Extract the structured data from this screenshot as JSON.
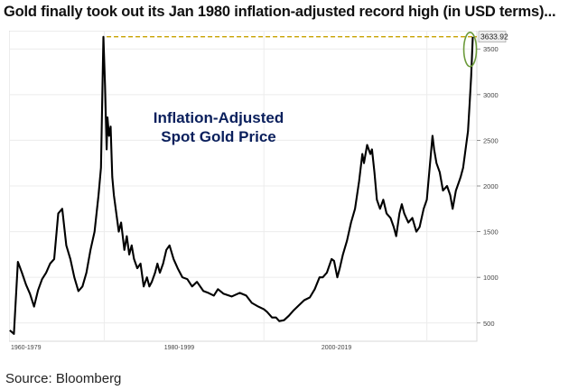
{
  "headline": "Gold finally took out its Jan 1980 inflation-adjusted record high (in USD terms)...",
  "source": "Source: Bloomberg",
  "chart_data": {
    "type": "line",
    "title": "Inflation-Adjusted\nSpot Gold Price",
    "xlabel": "",
    "ylabel": "",
    "x_tick_labels": [
      "1960-1979",
      "1980-1999",
      "2000-2019"
    ],
    "y_tick_labels": [
      "500",
      "1000",
      "1500",
      "2000",
      "2500",
      "3000",
      "3500"
    ],
    "ylim": [
      300,
      3700
    ],
    "grid": true,
    "last_value_label": "3633.92",
    "record_line_value": 3633.92,
    "colors": {
      "line": "#000000",
      "record_line": "#c8a200",
      "highlight_circle": "#6b9a3a"
    },
    "series": [
      {
        "x": [
          1968.0,
          1968.5,
          1969.0,
          1969.5,
          1970.0,
          1970.5,
          1971.0,
          1971.5,
          1972.0,
          1972.5,
          1973.0,
          1973.5,
          1974.0,
          1974.5,
          1975.0,
          1975.5,
          1976.0,
          1976.5,
          1977.0,
          1977.5,
          1978.0,
          1978.5,
          1979.0,
          1979.3,
          1979.6,
          1979.8,
          1980.0,
          1980.1,
          1980.3,
          1980.5,
          1980.7,
          1980.9,
          1981.2,
          1981.5,
          1981.8,
          1982.2,
          1982.5,
          1982.8,
          1983.1,
          1983.4,
          1983.8,
          1984.2,
          1984.6,
          1985.0,
          1985.3,
          1985.6,
          1986.0,
          1986.3,
          1986.6,
          1987.0,
          1987.4,
          1987.8,
          1988.3,
          1988.8,
          1989.4,
          1990.0,
          1990.6,
          1991.2,
          1992.0,
          1992.6,
          1993.3,
          1993.8,
          1994.5,
          1995.5,
          1996.5,
          1997.3,
          1998.0,
          1998.8,
          1999.5,
          1999.9,
          2000.5,
          2001.0,
          2001.4,
          2002.0,
          2002.6,
          2003.2,
          2003.8,
          2004.5,
          2005.2,
          2005.8,
          2006.4,
          2006.8,
          2007.3,
          2007.9,
          2008.2,
          2008.6,
          2008.9,
          2009.3,
          2009.8,
          2010.3,
          2010.8,
          2011.3,
          2011.7,
          2011.9,
          2012.3,
          2012.7,
          2012.9,
          2013.2,
          2013.5,
          2013.9,
          2014.3,
          2014.7,
          2015.2,
          2015.6,
          2015.9,
          2016.3,
          2016.6,
          2016.9,
          2017.4,
          2017.9,
          2018.4,
          2018.8,
          2019.3,
          2019.7,
          2020.0,
          2020.4,
          2020.6,
          2020.9,
          2021.3,
          2021.7,
          2022.2,
          2022.6,
          2022.9,
          2023.3,
          2023.7,
          2023.9,
          2024.2,
          2024.5,
          2024.8,
          2025.0,
          2025.2,
          2025.4
        ],
        "y": [
          420,
          380,
          1170,
          1050,
          920,
          820,
          680,
          860,
          980,
          1050,
          1150,
          1200,
          1700,
          1750,
          1350,
          1200,
          1000,
          850,
          900,
          1050,
          1300,
          1500,
          1900,
          2200,
          3633,
          3100,
          2400,
          2750,
          2550,
          2650,
          2100,
          1900,
          1700,
          1500,
          1600,
          1300,
          1450,
          1250,
          1350,
          1200,
          1100,
          1150,
          900,
          1000,
          900,
          950,
          1050,
          1150,
          1050,
          1150,
          1300,
          1350,
          1200,
          1100,
          1000,
          980,
          900,
          950,
          850,
          830,
          800,
          870,
          820,
          790,
          830,
          800,
          720,
          680,
          650,
          620,
          560,
          560,
          520,
          530,
          580,
          640,
          690,
          750,
          780,
          870,
          1000,
          1000,
          1050,
          1200,
          1180,
          1000,
          1100,
          1250,
          1400,
          1600,
          1750,
          2050,
          2350,
          2250,
          2450,
          2350,
          2400,
          2150,
          1850,
          1750,
          1850,
          1700,
          1650,
          1550,
          1450,
          1700,
          1800,
          1700,
          1600,
          1650,
          1500,
          1550,
          1750,
          1850,
          2150,
          2550,
          2400,
          2250,
          2150,
          1950,
          2000,
          1900,
          1750,
          1950,
          2050,
          2100,
          2200,
          2400,
          2600,
          2900,
          3200,
          3633
        ]
      }
    ]
  }
}
